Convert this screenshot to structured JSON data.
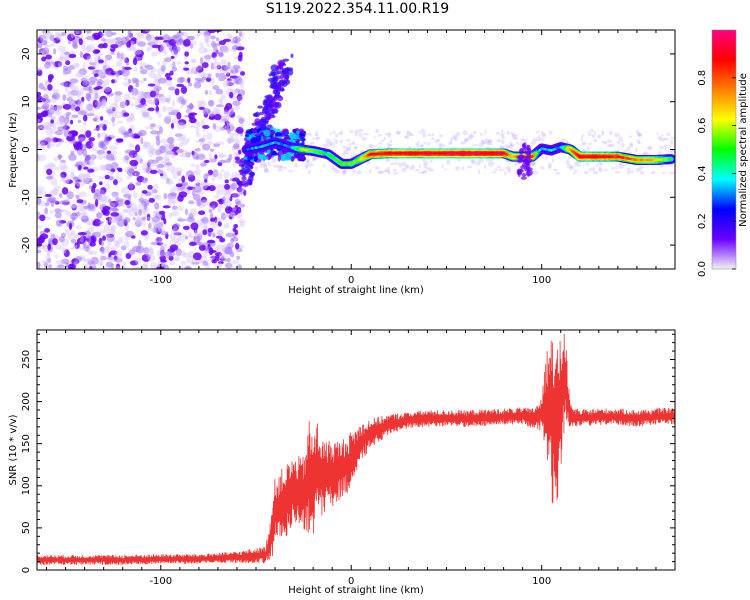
{
  "title": "S119.2022.354.11.00.R19",
  "chart_data": [
    {
      "type": "heatmap",
      "xlabel": "Height of straight line (km)",
      "ylabel": "Frequency (Hz)",
      "xlim": [
        -165,
        170
      ],
      "ylim": [
        -25,
        25
      ],
      "x_ticks": [
        -100,
        0,
        100
      ],
      "y_ticks": [
        -20,
        -10,
        0,
        10,
        20
      ],
      "colorbar": {
        "label": "Normalized spectral amplitude",
        "range": [
          0,
          1
        ],
        "ticks": [
          "0.0",
          "0.2",
          "0.4",
          "0.6",
          "0.8"
        ],
        "colormap": [
          "#f2f2f2",
          "#6a00ff",
          "#0000ff",
          "#00ffff",
          "#00ff00",
          "#ffff00",
          "#ff8000",
          "#ff0000",
          "#ff0080"
        ]
      },
      "carrier_line": {
        "x": [
          -55,
          -48,
          -40,
          -32,
          -26,
          -20,
          -12,
          -5,
          0,
          5,
          10,
          20,
          40,
          60,
          80,
          85,
          95,
          100,
          105,
          110,
          115,
          120,
          130,
          140,
          150,
          160,
          168
        ],
        "y": [
          0,
          0.5,
          1.5,
          0.5,
          0,
          -0.3,
          -1,
          -3,
          -3,
          -2,
          -1,
          -0.8,
          -0.8,
          -0.8,
          -0.8,
          -1.5,
          -1.5,
          0.2,
          -0.2,
          0.5,
          0,
          -1.5,
          -1.5,
          -1.5,
          -2.2,
          -2.2,
          -2
        ],
        "amplitude": [
          0.3,
          0.35,
          0.35,
          0.3,
          0.6,
          0.55,
          0.45,
          0.55,
          0.55,
          0.6,
          0.85,
          0.9,
          0.92,
          0.95,
          0.92,
          0.7,
          0.85,
          0.3,
          0.35,
          0.3,
          0.75,
          0.9,
          0.9,
          0.85,
          0.75,
          0.7,
          0.5
        ]
      },
      "noise_region_x": [
        -165,
        -57
      ],
      "streak": {
        "x": [
          -58,
          -35
        ],
        "y": [
          -7,
          18
        ]
      }
    },
    {
      "type": "line",
      "xlabel": "Height of straight line (km)",
      "ylabel": "SNR (10 * v/v)",
      "xlim": [
        -165,
        170
      ],
      "ylim": [
        0,
        285
      ],
      "x_ticks": [
        -100,
        0,
        100
      ],
      "y_ticks": [
        0,
        50,
        100,
        150,
        200,
        250
      ],
      "color": "#ee3333",
      "series": [
        {
          "x": [
            -165,
            -140,
            -120,
            -100,
            -80,
            -60,
            -45,
            -42,
            -40,
            -35,
            -30,
            -25,
            -22,
            -20,
            -18,
            -15,
            -10,
            -5,
            0,
            5,
            10,
            20,
            30,
            40,
            60,
            80,
            90,
            95,
            100,
            103,
            105,
            108,
            110,
            112,
            115,
            120,
            130,
            140,
            150,
            160,
            170
          ],
          "values": [
            12,
            12,
            12,
            13,
            13,
            15,
            18,
            40,
            70,
            80,
            95,
            90,
            110,
            100,
            120,
            110,
            115,
            120,
            130,
            150,
            162,
            173,
            178,
            180,
            180,
            182,
            183,
            180,
            185,
            190,
            195,
            160,
            200,
            230,
            182,
            180,
            182,
            182,
            180,
            182,
            183
          ],
          "spread": [
            6,
            6,
            6,
            6,
            6,
            7,
            10,
            30,
            40,
            45,
            40,
            45,
            70,
            60,
            60,
            45,
            40,
            35,
            35,
            25,
            18,
            12,
            10,
            10,
            10,
            10,
            10,
            12,
            20,
            80,
            120,
            100,
            80,
            60,
            15,
            10,
            10,
            10,
            10,
            10,
            10
          ]
        }
      ]
    }
  ]
}
